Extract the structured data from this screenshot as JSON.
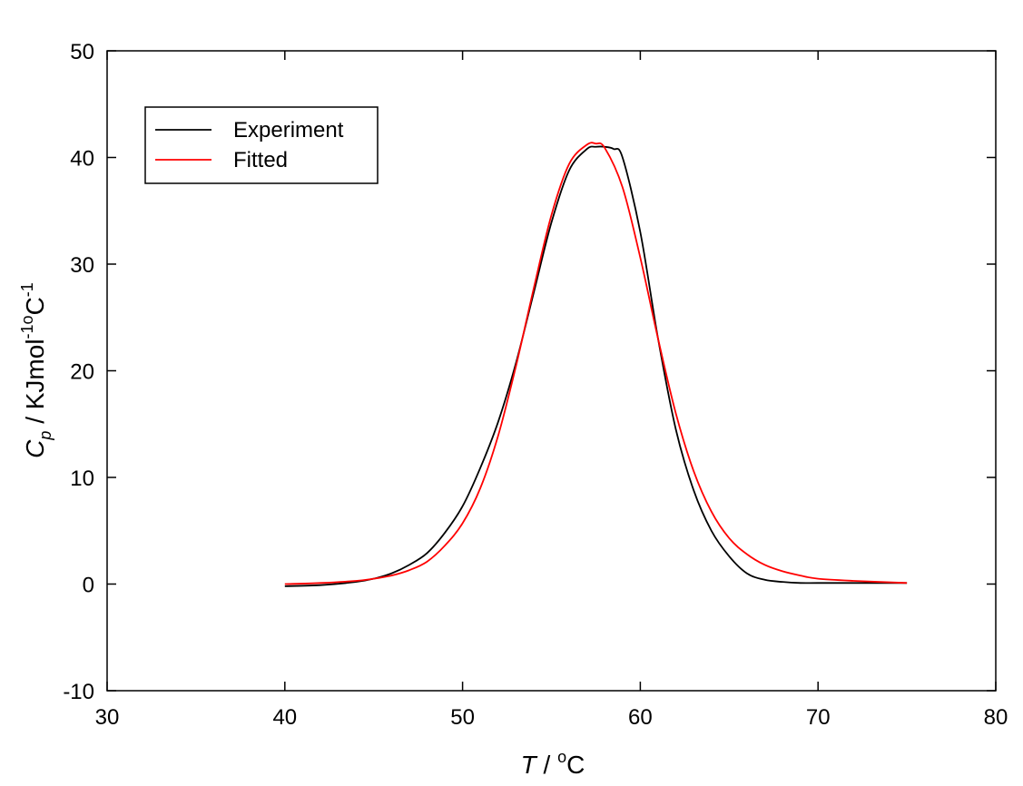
{
  "chart_data": {
    "type": "line",
    "title": "",
    "xlabel": {
      "main": "T",
      "sep": " / ",
      "sup": "o",
      "tail": "C"
    },
    "ylabel": {
      "main": "C",
      "sub": "p",
      "mid": " / KJmol",
      "sup1": "-1",
      "sup2": "o",
      "mid2": "C",
      "sup3": "-1"
    },
    "xlim": [
      30,
      80
    ],
    "ylim": [
      -10,
      50
    ],
    "xticks": [
      30,
      40,
      50,
      60,
      70,
      80
    ],
    "yticks": [
      -10,
      0,
      10,
      20,
      30,
      40,
      50
    ],
    "xtick_labels": [
      "30",
      "40",
      "50",
      "60",
      "70",
      "80"
    ],
    "ytick_labels": [
      "-10",
      "0",
      "10",
      "20",
      "30",
      "40",
      "50"
    ],
    "grid": false,
    "legend": {
      "position": "top-left",
      "entries": [
        "Experiment",
        "Fitted"
      ]
    },
    "series": [
      {
        "name": "Experiment",
        "color": "#000000",
        "x": [
          40,
          42,
          44,
          45,
          46,
          47,
          48,
          49,
          50,
          51,
          52,
          53,
          54,
          55,
          56,
          57,
          57.5,
          58,
          58.5,
          59,
          60,
          61,
          62,
          63,
          64,
          65,
          66,
          67,
          68,
          69,
          70,
          72,
          75
        ],
        "y": [
          -0.2,
          -0.1,
          0.2,
          0.5,
          1.0,
          1.8,
          2.9,
          4.8,
          7.3,
          10.9,
          15.2,
          20.7,
          27.3,
          33.9,
          38.8,
          40.8,
          41.0,
          41.0,
          40.8,
          40.0,
          33.0,
          23.0,
          14.5,
          8.8,
          5.0,
          2.6,
          1.0,
          0.4,
          0.2,
          0.1,
          0.1,
          0.1,
          0.1
        ]
      },
      {
        "name": "Fitted",
        "color": "#ff0000",
        "x": [
          40,
          42,
          44,
          45,
          46,
          47,
          48,
          49,
          50,
          51,
          52,
          53,
          54,
          55,
          56,
          57,
          57.5,
          58,
          59,
          60,
          61,
          62,
          63,
          64,
          65,
          66,
          67,
          68,
          69,
          70,
          72,
          75
        ],
        "y": [
          0.0,
          0.1,
          0.3,
          0.5,
          0.8,
          1.3,
          2.1,
          3.6,
          5.7,
          9.0,
          13.9,
          20.4,
          27.7,
          34.6,
          39.4,
          41.2,
          41.3,
          40.9,
          37.2,
          30.6,
          23.0,
          16.0,
          10.6,
          6.8,
          4.3,
          2.8,
          1.8,
          1.2,
          0.8,
          0.5,
          0.3,
          0.1
        ]
      }
    ]
  }
}
